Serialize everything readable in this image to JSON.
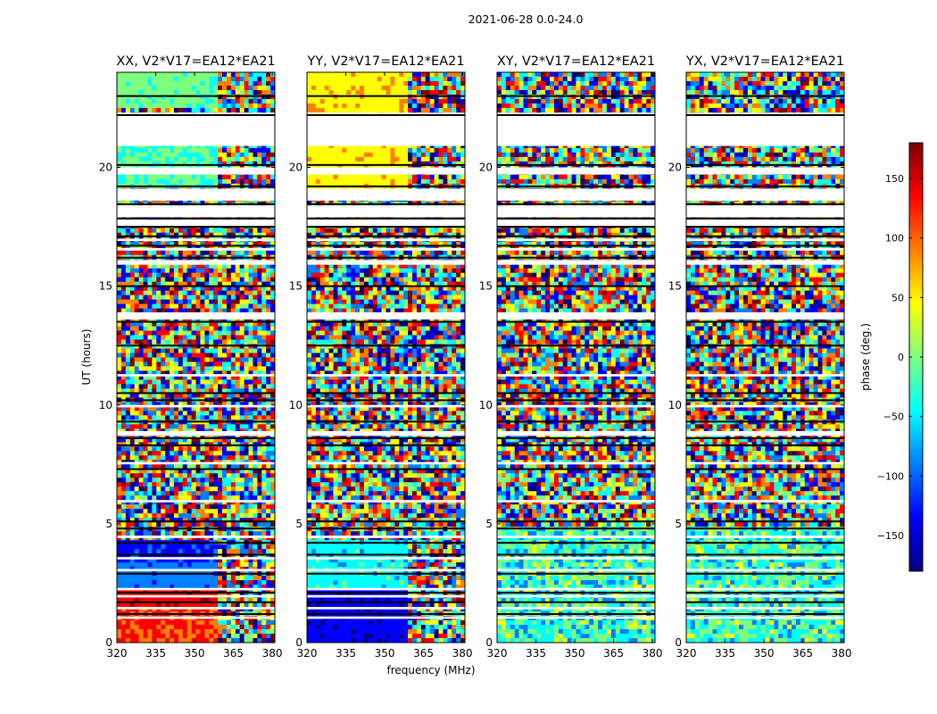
{
  "figure": {
    "suptitle": "2021-06-28 0.0-24.0",
    "xlabel": "frequency (MHz)",
    "ylabel": "UT (hours)"
  },
  "chart_data": {
    "type": "heatmap",
    "x_range_mhz": [
      320,
      381
    ],
    "y_range_hours": [
      0,
      24
    ],
    "x_ticks": [
      320,
      335,
      350,
      365,
      380
    ],
    "x_tick_labels": [
      "320",
      "335",
      "350",
      "365",
      "380"
    ],
    "y_ticks": [
      0,
      5,
      10,
      15,
      20
    ],
    "y_tick_labels": [
      "0",
      "5",
      "10",
      "15",
      "20"
    ],
    "panels": [
      {
        "title": "XX, V2*V17=EA12*EA21",
        "corr": "XX"
      },
      {
        "title": "YY, V2*V17=EA12*EA21",
        "corr": "YY"
      },
      {
        "title": "XY, V2*V17=EA12*EA21",
        "corr": "XY"
      },
      {
        "title": "YX, V2*V17=EA12*EA21",
        "corr": "YX"
      }
    ],
    "colorbar": {
      "label": "phase (deg.)",
      "range": [
        -180,
        180
      ],
      "ticks": [
        150,
        100,
        50,
        0,
        -50,
        -100,
        -150
      ],
      "tick_labels": [
        "150",
        "100",
        "50",
        "0",
        "−50",
        "−100",
        "−150"
      ],
      "colormap": "jet",
      "colors": [
        "#00007f",
        "#0000ff",
        "#007fff",
        "#00ffff",
        "#7fff7f",
        "#ffff00",
        "#ff7f00",
        "#ff0000",
        "#7f0000"
      ]
    },
    "flagged_gaps_hours": [
      [
        22.3,
        20.9
      ],
      [
        21.8,
        21.9
      ],
      [
        19.7,
        20.0
      ],
      [
        18.6,
        19.1
      ],
      [
        17.9,
        18.4
      ],
      [
        17.5,
        17.8
      ],
      [
        16.9,
        17.0
      ],
      [
        16.5,
        16.6
      ],
      [
        15.9,
        16.1
      ],
      [
        13.6,
        13.9
      ],
      [
        11.2,
        11.3
      ],
      [
        9.9,
        10.0
      ],
      [
        8.7,
        8.9
      ],
      [
        7.5,
        7.6
      ],
      [
        5.9,
        6.0
      ],
      [
        4.4,
        4.5
      ],
      [
        3.5,
        3.6
      ],
      [
        3.0,
        3.1
      ],
      [
        2.2,
        2.3
      ],
      [
        1.9,
        2.0
      ],
      [
        1.4,
        1.5
      ],
      [
        1.0,
        1.1
      ]
    ],
    "scan_boundaries_hours": [
      23.0,
      22.2,
      20.1,
      19.2,
      18.45,
      17.85,
      17.5,
      17.1,
      16.7,
      16.2,
      15.0,
      13.5,
      12.5,
      10.5,
      10.2,
      9.3,
      8.6,
      8.3,
      7.3,
      5.1,
      4.8,
      4.2,
      3.7,
      2.9,
      2.1,
      1.7,
      1.2
    ]
  }
}
